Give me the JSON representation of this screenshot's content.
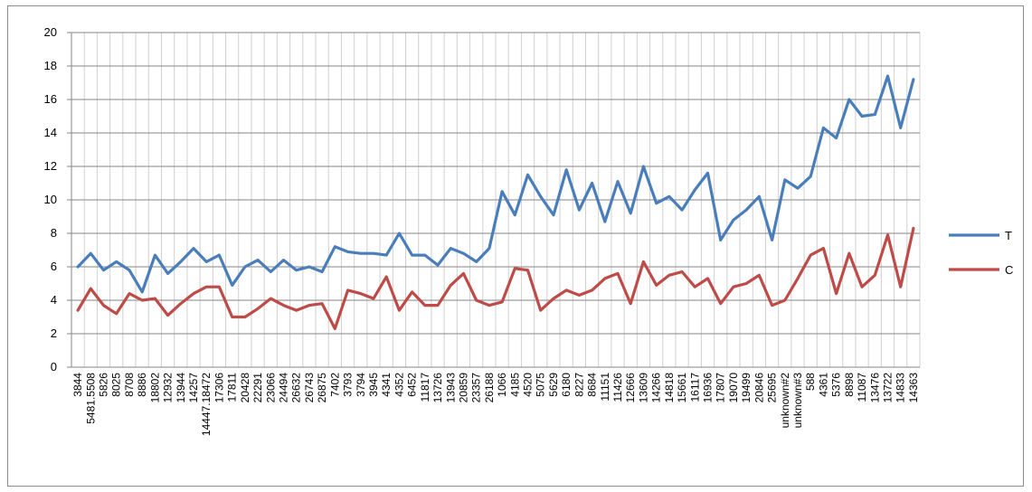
{
  "chart_data": {
    "type": "line",
    "title": "",
    "xlabel": "",
    "ylabel": "",
    "ylim": [
      0,
      20
    ],
    "yticks": [
      0,
      2,
      4,
      6,
      8,
      10,
      12,
      14,
      16,
      18,
      20
    ],
    "grid": true,
    "legend_position": "right",
    "categories": [
      "3844",
      "5481.5508",
      "5826",
      "8025",
      "8708",
      "8886",
      "18802",
      "12932",
      "13944",
      "14257",
      "14447.18472",
      "17306",
      "17811",
      "20428",
      "22291",
      "23066",
      "24494",
      "26632",
      "26743",
      "26875",
      "7402",
      "3793",
      "3794",
      "3945",
      "4341",
      "4352",
      "6452",
      "11817",
      "13726",
      "13943",
      "20859",
      "23357",
      "26188",
      "1066",
      "4185",
      "4520",
      "5075",
      "5629",
      "6180",
      "8227",
      "8684",
      "11151",
      "11426",
      "12666",
      "13609",
      "14266",
      "14818",
      "15661",
      "16117",
      "16936",
      "17807",
      "19070",
      "19499",
      "20846",
      "25695",
      "unknown#2",
      "unknown#3",
      "588",
      "4361",
      "5376",
      "8898",
      "11087",
      "13476",
      "13722",
      "14833",
      "14363"
    ],
    "series": [
      {
        "name": "T",
        "color": "#4a7ebb",
        "values": [
          6.0,
          6.8,
          5.8,
          6.3,
          5.8,
          4.5,
          6.7,
          5.6,
          6.3,
          7.1,
          6.3,
          6.7,
          4.9,
          6.0,
          6.4,
          5.7,
          6.4,
          5.8,
          6.0,
          5.7,
          7.2,
          6.9,
          6.8,
          6.8,
          6.7,
          8.0,
          6.7,
          6.7,
          6.1,
          7.1,
          6.8,
          6.3,
          7.1,
          10.5,
          9.1,
          11.5,
          10.2,
          9.1,
          11.8,
          9.4,
          11.0,
          8.7,
          11.1,
          9.2,
          12.0,
          9.8,
          10.2,
          9.4,
          10.6,
          11.6,
          7.6,
          8.8,
          9.4,
          10.2,
          7.6,
          11.2,
          10.7,
          11.4,
          14.3,
          13.7,
          16.0,
          15.0,
          15.1,
          17.4,
          14.3,
          17.2
        ]
      },
      {
        "name": "C",
        "color": "#be4b48",
        "values": [
          3.4,
          4.7,
          3.7,
          3.2,
          4.4,
          4.0,
          4.1,
          3.1,
          3.8,
          4.4,
          4.8,
          4.8,
          3.0,
          3.0,
          3.5,
          4.1,
          3.7,
          3.4,
          3.7,
          3.8,
          2.3,
          4.6,
          4.4,
          4.1,
          5.4,
          3.4,
          4.5,
          3.7,
          3.7,
          4.9,
          5.6,
          4.0,
          3.7,
          3.9,
          5.9,
          5.8,
          3.4,
          4.1,
          4.6,
          4.3,
          4.6,
          5.3,
          5.6,
          3.8,
          6.3,
          4.9,
          5.5,
          5.7,
          4.8,
          5.3,
          3.8,
          4.8,
          5.0,
          5.5,
          3.7,
          4.0,
          5.3,
          6.7,
          7.1,
          4.4,
          6.8,
          4.8,
          5.5,
          7.9,
          4.8,
          8.3
        ]
      }
    ]
  }
}
